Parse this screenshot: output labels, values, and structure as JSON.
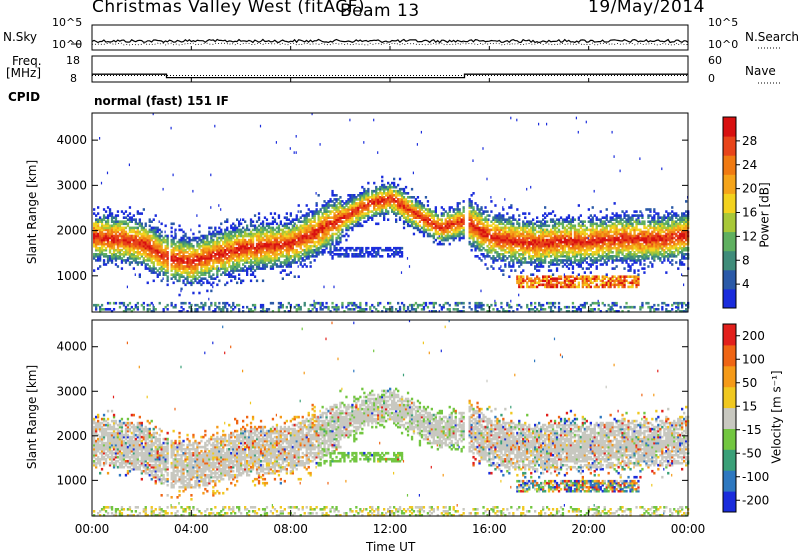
{
  "header": {
    "station": "Christmas Valley West (fitACF)",
    "beam": "Beam 13",
    "date": "19/May/2014"
  },
  "noise_panel": {
    "left_label": "N.Sky",
    "right_label": "N.Search",
    "left_ticks": [
      "10^5",
      "10^0"
    ],
    "right_ticks": [
      "10^5",
      "10^0"
    ]
  },
  "freq_panel": {
    "left_label_1": "Freq.",
    "left_label_2": "[MHz]",
    "right_label": "Nave",
    "left_ticks": [
      "18",
      "8"
    ],
    "right_ticks": [
      "60",
      "0"
    ],
    "freq_segments": [
      {
        "t_start": 0.0,
        "t_end": 3.0,
        "value": 11.0
      },
      {
        "t_start": 3.0,
        "t_end": 15.0,
        "value": 9.7
      },
      {
        "t_start": 15.0,
        "t_end": 24.0,
        "value": 11.0
      }
    ],
    "nave_value": 15
  },
  "cpid": {
    "label": "CPID",
    "value": "normal (fast) 151 IF"
  },
  "x_axis": {
    "ticks": [
      "00:00",
      "04:00",
      "08:00",
      "12:00",
      "16:00",
      "20:00",
      "00:00"
    ],
    "label": "Time UT",
    "range_hours": [
      0,
      24
    ]
  },
  "chart_data": [
    {
      "type": "heatmap",
      "name": "power",
      "ylabel": "Slant Range [km]",
      "yticks": [
        "1000",
        "2000",
        "3000",
        "4000"
      ],
      "ylim": [
        200,
        4600
      ],
      "colorbar_label": "Power [dB]",
      "colorbar_ticks": [
        "4",
        "8",
        "12",
        "16",
        "20",
        "24",
        "28"
      ],
      "colorbar_range": [
        0,
        30
      ],
      "colors": [
        "#1a2cdc",
        "#2b5aa8",
        "#3f8c7a",
        "#5fb060",
        "#a8c838",
        "#f3d21e",
        "#f5a41a",
        "#f07a12",
        "#e8441a",
        "#d81010"
      ],
      "band_centers_km": [
        [
          0,
          1850
        ],
        [
          1,
          1800
        ],
        [
          2,
          1700
        ],
        [
          3.1,
          1350
        ],
        [
          4,
          1300
        ],
        [
          5,
          1450
        ],
        [
          6,
          1600
        ],
        [
          7,
          1650
        ],
        [
          8,
          1700
        ],
        [
          9,
          1950
        ],
        [
          10,
          2250
        ],
        [
          11,
          2550
        ],
        [
          12,
          2700
        ],
        [
          13,
          2350
        ],
        [
          14,
          2050
        ],
        [
          15,
          2200
        ],
        [
          16,
          1850
        ],
        [
          17,
          1750
        ],
        [
          18,
          1700
        ],
        [
          19,
          1750
        ],
        [
          20,
          1750
        ],
        [
          21,
          1800
        ],
        [
          22,
          1800
        ],
        [
          23,
          1800
        ],
        [
          24,
          1900
        ]
      ],
      "gap_hours": [
        [
          3.05,
          3.15
        ],
        [
          15.0,
          15.1
        ]
      ]
    },
    {
      "type": "heatmap",
      "name": "velocity",
      "ylabel": "Slant Range [km]",
      "yticks": [
        "1000",
        "2000",
        "3000",
        "4000"
      ],
      "ylim": [
        200,
        4600
      ],
      "colorbar_label": "Velocity [m s⁻¹]",
      "colorbar_ticks": [
        "200",
        "100",
        "50",
        "15",
        "-15",
        "-50",
        "-100",
        "-200"
      ],
      "colors": [
        "#1a2cdc",
        "#2e78c0",
        "#3aa078",
        "#72c640",
        "#c8c8c0",
        "#f0c820",
        "#f59a18",
        "#ef6514",
        "#e2201c"
      ]
    }
  ]
}
